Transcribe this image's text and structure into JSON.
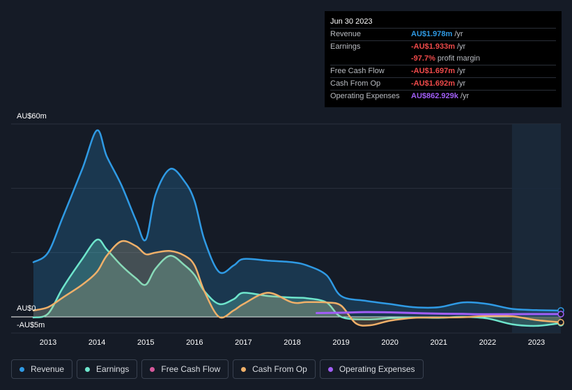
{
  "tooltip": {
    "date": "Jun 30 2023",
    "rows": [
      {
        "label": "Revenue",
        "value": "AU$1.978m",
        "unit": "/yr"
      },
      {
        "label": "Earnings",
        "value": "-AU$1.933m",
        "unit": "/yr"
      },
      {
        "label": "",
        "value": "-97.7%",
        "unit": "profit margin"
      },
      {
        "label": "Free Cash Flow",
        "value": "-AU$1.697m",
        "unit": "/yr"
      },
      {
        "label": "Cash From Op",
        "value": "-AU$1.692m",
        "unit": "/yr"
      },
      {
        "label": "Operating Expenses",
        "value": "AU$862.929k",
        "unit": "/yr"
      }
    ]
  },
  "legend": [
    {
      "label": "Revenue",
      "color": "#2f9ae4"
    },
    {
      "label": "Earnings",
      "color": "#6ee5cc"
    },
    {
      "label": "Free Cash Flow",
      "color": "#d6589b"
    },
    {
      "label": "Cash From Op",
      "color": "#f0b069"
    },
    {
      "label": "Operating Expenses",
      "color": "#a15ef7"
    }
  ],
  "chart_data": {
    "type": "area",
    "y_axis_labels": {
      "top": "AU$60m",
      "zero": "AU$0",
      "bottom": "-AU$5m"
    },
    "ylim": [
      -5,
      60
    ],
    "xlim": [
      2012.7,
      2023.5
    ],
    "x_ticks": [
      "2013",
      "2014",
      "2015",
      "2016",
      "2017",
      "2018",
      "2019",
      "2020",
      "2021",
      "2022",
      "2023"
    ],
    "x_tick_values": [
      2013,
      2014,
      2015,
      2016,
      2017,
      2018,
      2019,
      2020,
      2021,
      2022,
      2023
    ],
    "highlight_from": 2022.5,
    "series": [
      {
        "name": "Revenue",
        "color": "#2f9ae4",
        "x": [
          2012.7,
          2013.0,
          2013.3,
          2013.7,
          2014.0,
          2014.2,
          2014.5,
          2014.8,
          2015.0,
          2015.2,
          2015.5,
          2015.8,
          2016.0,
          2016.2,
          2016.5,
          2016.8,
          2017.0,
          2017.5,
          2018.0,
          2018.3,
          2018.7,
          2019.0,
          2019.5,
          2020.0,
          2020.5,
          2021.0,
          2021.5,
          2022.0,
          2022.5,
          2023.0,
          2023.5
        ],
        "y": [
          17,
          20,
          31,
          46,
          58,
          50,
          41,
          30,
          24,
          38,
          46,
          42,
          36,
          24,
          14,
          16,
          18,
          17.5,
          17,
          16,
          13,
          6.5,
          5,
          4,
          3,
          3,
          4.5,
          4,
          2.5,
          2.1,
          1.98
        ]
      },
      {
        "name": "Earnings",
        "color": "#6ee5cc",
        "x": [
          2012.7,
          2013.0,
          2013.3,
          2013.7,
          2014.0,
          2014.2,
          2014.5,
          2014.8,
          2015.0,
          2015.2,
          2015.5,
          2015.8,
          2016.0,
          2016.2,
          2016.5,
          2016.8,
          2017.0,
          2017.5,
          2018.0,
          2018.3,
          2018.7,
          2019.0,
          2019.5,
          2020.0,
          2020.5,
          2021.0,
          2021.5,
          2022.0,
          2022.5,
          2023.0,
          2023.5
        ],
        "y": [
          -0.2,
          1,
          9,
          18,
          24,
          21,
          16,
          12,
          10,
          15,
          19,
          16,
          13,
          8,
          4,
          5.5,
          7.5,
          6.5,
          6,
          5.8,
          4.5,
          0,
          -0.8,
          -0.4,
          -0.2,
          -0.3,
          0,
          -0.5,
          -2.3,
          -2.8,
          -1.93
        ]
      },
      {
        "name": "Cash From Op",
        "color": "#f0b069",
        "x": [
          2012.7,
          2013.0,
          2013.3,
          2013.7,
          2014.0,
          2014.2,
          2014.5,
          2014.8,
          2015.0,
          2015.2,
          2015.5,
          2015.8,
          2016.0,
          2016.2,
          2016.5,
          2016.8,
          2017.0,
          2017.5,
          2018.0,
          2018.3,
          2018.7,
          2019.0,
          2019.3,
          2019.6,
          2020.0,
          2020.5,
          2021.0,
          2021.5,
          2022.0,
          2022.5,
          2023.0,
          2023.5
        ],
        "y": [
          2,
          3,
          6,
          10,
          14,
          19,
          23.5,
          22,
          19.5,
          20,
          20.5,
          19,
          16,
          8,
          0,
          2,
          4,
          7.5,
          4.5,
          4.6,
          4.5,
          3.5,
          -2,
          -2.6,
          -1.2,
          -0.3,
          -0.2,
          -0.1,
          0.3,
          0.2,
          -1,
          -1.69
        ]
      },
      {
        "name": "Operating Expenses",
        "color": "#a15ef7",
        "x": [
          2018.5,
          2019.0,
          2019.5,
          2020.0,
          2020.5,
          2021.0,
          2021.5,
          2022.0,
          2022.5,
          2023.0,
          2023.5
        ],
        "y": [
          1.2,
          1.3,
          1.5,
          1.4,
          1.2,
          1.0,
          0.9,
          0.8,
          0.85,
          0.86,
          0.863
        ]
      }
    ]
  }
}
